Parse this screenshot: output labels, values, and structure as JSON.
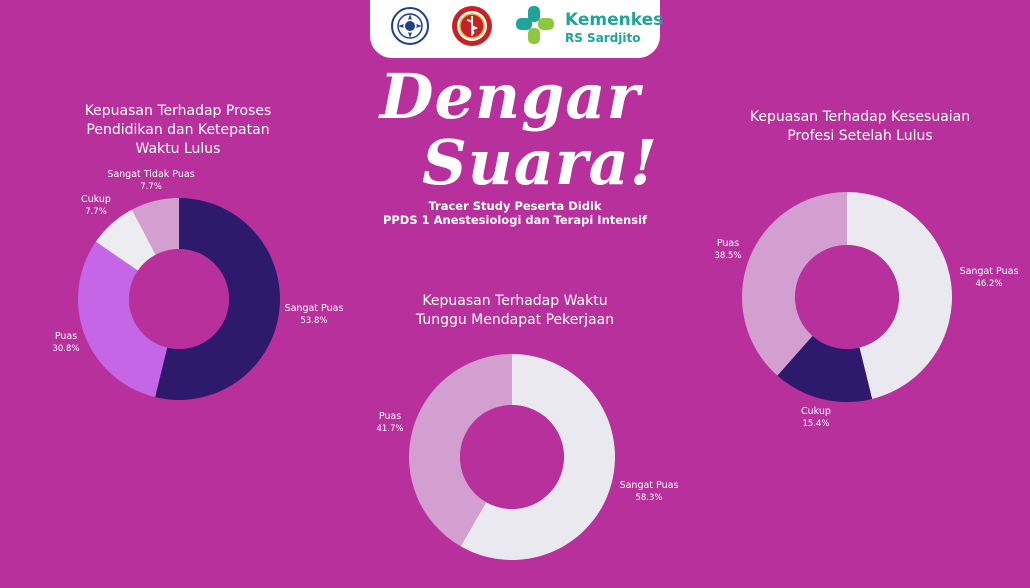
{
  "header": {
    "brand_name": "Kemenkes",
    "brand_sub": "RS Sardjito",
    "title_line1": "Dengar",
    "title_line2": "Suara!",
    "subtitle_line1": "Tracer Study Peserta Didik",
    "subtitle_line2": "PPDS 1 Anestesiologi dan Terapi Intensif"
  },
  "colors": {
    "background": "#b8309b",
    "sangat_puas_dark": "#2d1a6c",
    "puas_violet": "#c566e6",
    "cukup_white": "#ececf1",
    "sangat_tidak_puas_pink": "#d39fd0",
    "light_grey": "#ebe9f0"
  },
  "chart_data": [
    {
      "type": "pie",
      "title_lines": [
        "Kepuasan Terhadap Proses",
        "Pendidikan dan Ketepatan",
        "Waktu Lulus"
      ],
      "slices": [
        {
          "label": "Sangat Puas",
          "value": 53.8,
          "display": "53.8%",
          "color": "#2d1a6c"
        },
        {
          "label": "Puas",
          "value": 30.8,
          "display": "30.8%",
          "color": "#c566e6"
        },
        {
          "label": "Cukup",
          "value": 7.7,
          "display": "7.7%",
          "color": "#ececf1"
        },
        {
          "label": "Sangat Tidak Puas",
          "value": 7.7,
          "display": "7.7%",
          "color": "#d39fd0"
        }
      ]
    },
    {
      "type": "pie",
      "title_lines": [
        "Kepuasan Terhadap Waktu",
        "Tunggu Mendapat Pekerjaan"
      ],
      "slices": [
        {
          "label": "Sangat Puas",
          "value": 58.3,
          "display": "58.3%",
          "color": "#ebe9f0"
        },
        {
          "label": "Puas",
          "value": 41.7,
          "display": "41.7%",
          "color": "#d39fd0"
        }
      ]
    },
    {
      "type": "pie",
      "title_lines": [
        "Kepuasan Terhadap Kesesuaian",
        "Profesi Setelah Lulus"
      ],
      "slices": [
        {
          "label": "Sangat Puas",
          "value": 46.2,
          "display": "46.2%",
          "color": "#ebe9f0"
        },
        {
          "label": "Cukup",
          "value": 15.4,
          "display": "15.4%",
          "color": "#2d1a6c"
        },
        {
          "label": "Puas",
          "value": 38.5,
          "display": "38.5%",
          "color": "#d39fd0"
        }
      ]
    }
  ]
}
